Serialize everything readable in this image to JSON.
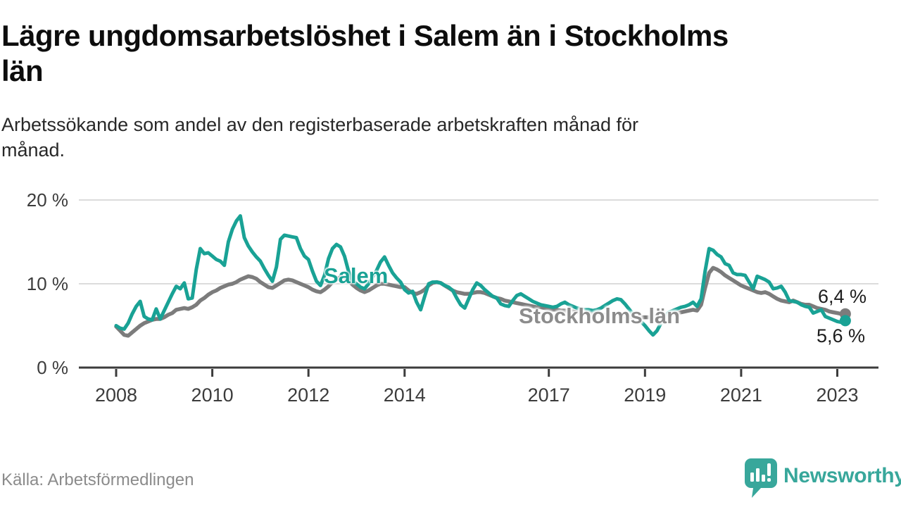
{
  "title": {
    "lines": [
      "Lägre ungdomsarbetslöshet i Salem än i Stockholms",
      "län"
    ]
  },
  "subtitle": {
    "lines": [
      "Arbetssökande som andel av den registerbaserade arbetskraften månad för",
      "månad."
    ]
  },
  "chart_data": {
    "type": "line",
    "title": "Lägre ungdomsarbetslöshet i Salem än i Stockholms län",
    "subtitle": "Arbetssökande som andel av den registerbaserade arbetskraften månad för månad.",
    "unit": "%",
    "x_start": "2008-01",
    "x_interval": "monthly",
    "x_end": "2023-03",
    "x_tick_years": [
      2008,
      2010,
      2012,
      2014,
      2017,
      2019,
      2021,
      2023
    ],
    "y_ticks": [
      {
        "value": 0,
        "label": "0 %"
      },
      {
        "value": 10,
        "label": "10 %"
      },
      {
        "value": 20,
        "label": "20 %"
      }
    ],
    "ylim": [
      0,
      21.5
    ],
    "grid": "horizontal",
    "legend_position": "inline-labels",
    "series": [
      {
        "name": "Salem",
        "color": "#19a295",
        "end_label": "5,6 %",
        "end_value": 5.6,
        "values": [
          5.0,
          4.7,
          4.6,
          5.3,
          6.4,
          7.3,
          7.9,
          6.1,
          5.8,
          5.7,
          7.0,
          5.8,
          6.8,
          7.8,
          8.8,
          9.7,
          9.4,
          10.1,
          8.2,
          8.3,
          11.7,
          14.2,
          13.6,
          13.7,
          13.3,
          12.9,
          12.7,
          12.2,
          15.0,
          16.5,
          17.5,
          18.1,
          15.5,
          14.5,
          13.8,
          13.2,
          12.7,
          11.8,
          11.0,
          10.3,
          12.0,
          15.3,
          15.8,
          15.7,
          15.6,
          15.5,
          14.2,
          13.3,
          12.9,
          11.5,
          10.3,
          9.8,
          11.0,
          13.0,
          14.2,
          14.7,
          14.4,
          13.3,
          11.5,
          10.3,
          10.0,
          9.6,
          9.4,
          10.0,
          10.8,
          11.6,
          12.6,
          13.2,
          12.2,
          11.3,
          10.7,
          10.2,
          9.3,
          8.9,
          9.1,
          7.8,
          6.9,
          8.5,
          10.0,
          10.2,
          10.2,
          10.1,
          9.8,
          9.6,
          9.2,
          8.3,
          7.5,
          7.1,
          8.2,
          9.3,
          10.1,
          9.8,
          9.3,
          8.9,
          8.5,
          8.3,
          7.6,
          7.4,
          7.3,
          8.0,
          8.6,
          8.8,
          8.5,
          8.2,
          7.9,
          7.7,
          7.5,
          7.4,
          7.3,
          7.2,
          7.3,
          7.6,
          7.8,
          7.5,
          7.3,
          7.1,
          7.0,
          6.9,
          6.9,
          6.8,
          6.9,
          7.1,
          7.4,
          7.7,
          8.0,
          8.2,
          8.1,
          7.6,
          7.0,
          6.4,
          5.9,
          5.5,
          5.0,
          4.4,
          3.9,
          4.4,
          5.3,
          6.2,
          6.6,
          6.8,
          7.0,
          7.2,
          7.3,
          7.5,
          7.8,
          7.3,
          8.2,
          11.5,
          14.2,
          14.0,
          13.5,
          13.2,
          12.4,
          12.2,
          11.3,
          11.1,
          11.1,
          11.0,
          10.2,
          9.4,
          10.9,
          10.7,
          10.5,
          10.2,
          9.4,
          9.5,
          9.7,
          9.0,
          8.0,
          7.9,
          7.8,
          7.5,
          7.3,
          7.2,
          6.5,
          6.7,
          6.9,
          6.1,
          5.9,
          5.7,
          5.5,
          5.4,
          5.6
        ]
      },
      {
        "name": "Stockholms län",
        "color": "#7c7c7c",
        "end_label": "6,4 %",
        "end_value": 6.4,
        "values": [
          4.9,
          4.4,
          3.9,
          3.8,
          4.2,
          4.6,
          5.0,
          5.3,
          5.5,
          5.7,
          5.8,
          5.8,
          6.0,
          6.3,
          6.5,
          6.9,
          7.0,
          7.1,
          7.0,
          7.2,
          7.5,
          8.0,
          8.3,
          8.7,
          9.0,
          9.2,
          9.5,
          9.7,
          9.9,
          10.0,
          10.2,
          10.5,
          10.7,
          10.9,
          10.8,
          10.6,
          10.2,
          9.9,
          9.6,
          9.5,
          9.8,
          10.1,
          10.4,
          10.5,
          10.4,
          10.2,
          10.0,
          9.8,
          9.6,
          9.3,
          9.1,
          9.0,
          9.3,
          9.7,
          10.2,
          10.5,
          10.8,
          10.8,
          10.4,
          9.9,
          9.5,
          9.2,
          9.0,
          9.2,
          9.5,
          9.8,
          10.0,
          10.0,
          9.9,
          9.8,
          9.7,
          9.6,
          9.6,
          9.2,
          8.9,
          8.8,
          9.0,
          9.3,
          9.8,
          10.1,
          10.2,
          10.1,
          9.8,
          9.5,
          9.2,
          9.0,
          8.9,
          8.8,
          8.8,
          8.9,
          9.0,
          9.0,
          8.9,
          8.7,
          8.5,
          8.3,
          8.2,
          8.0,
          7.9,
          7.8,
          7.7,
          7.6,
          7.5,
          7.4,
          7.3,
          7.2,
          7.2,
          7.1,
          7.0,
          6.9,
          6.9,
          6.8,
          6.8,
          6.7,
          6.7,
          6.6,
          6.6,
          6.5,
          6.5,
          6.4,
          6.4,
          6.3,
          6.3,
          6.2,
          6.2,
          6.2,
          6.1,
          6.1,
          6.0,
          6.0,
          6.0,
          6.0,
          6.0,
          6.0,
          6.0,
          6.1,
          6.1,
          6.2,
          6.3,
          6.4,
          6.5,
          6.6,
          6.7,
          6.8,
          6.9,
          6.8,
          7.5,
          9.5,
          11.3,
          11.9,
          11.7,
          11.4,
          11.0,
          10.7,
          10.4,
          10.1,
          9.8,
          9.6,
          9.4,
          9.2,
          9.0,
          8.9,
          9.0,
          8.8,
          8.5,
          8.2,
          8.0,
          7.9,
          7.8,
          8.0,
          7.8,
          7.6,
          7.5,
          7.5,
          7.3,
          7.1,
          7.0,
          6.9,
          6.7,
          6.6,
          6.5,
          6.4,
          6.4
        ]
      }
    ]
  },
  "footer": {
    "source": "Källa: Arbetsförmedlingen",
    "brand": "Newsworthy"
  },
  "colors": {
    "salem_teal": "#19a295",
    "stockholm_gray": "#7c7c7c",
    "gridline": "#dcdcdc",
    "axis": "#3c3c3c",
    "brand_teal": "#38a79b"
  },
  "icons": {
    "brand_mark": "bar-chart-speech-bubble"
  }
}
